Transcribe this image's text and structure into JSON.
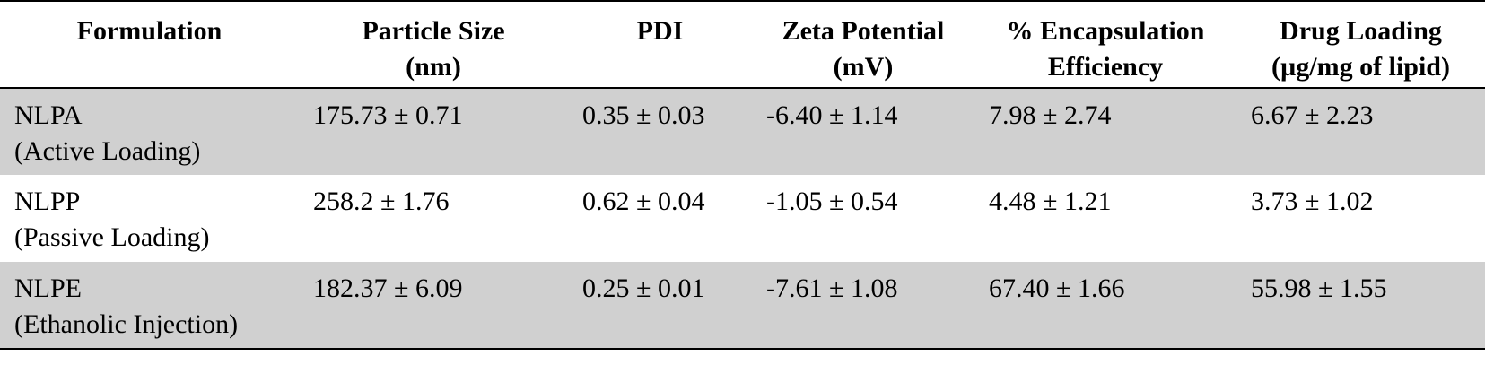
{
  "table": {
    "headers": [
      "Formulation",
      "Particle Size\n(nm)",
      "PDI",
      "Zeta Potential\n(mV)",
      "% Encapsulation\nEfficiency",
      "Drug Loading\n(µg/mg of lipid)"
    ],
    "rows": [
      {
        "shaded": true,
        "cells": [
          "NLPA\n(Active Loading)",
          "175.73 ± 0.71",
          "0.35 ± 0.03",
          "-6.40 ± 1.14",
          "7.98 ± 2.74",
          "6.67 ± 2.23"
        ]
      },
      {
        "shaded": false,
        "cells": [
          "NLPP\n(Passive Loading)",
          "258.2 ± 1.76",
          "0.62 ± 0.04",
          "-1.05 ± 0.54",
          "4.48 ± 1.21",
          "3.73 ± 1.02"
        ]
      },
      {
        "shaded": true,
        "cells": [
          "NLPE\n(Ethanolic Injection)",
          "182.37 ± 6.09",
          "0.25 ± 0.01",
          "-7.61 ± 1.08",
          "67.40 ± 1.66",
          "55.98 ± 1.55"
        ]
      }
    ],
    "colors": {
      "shaded_row": "#d0d0d0",
      "rule": "#000000"
    }
  }
}
